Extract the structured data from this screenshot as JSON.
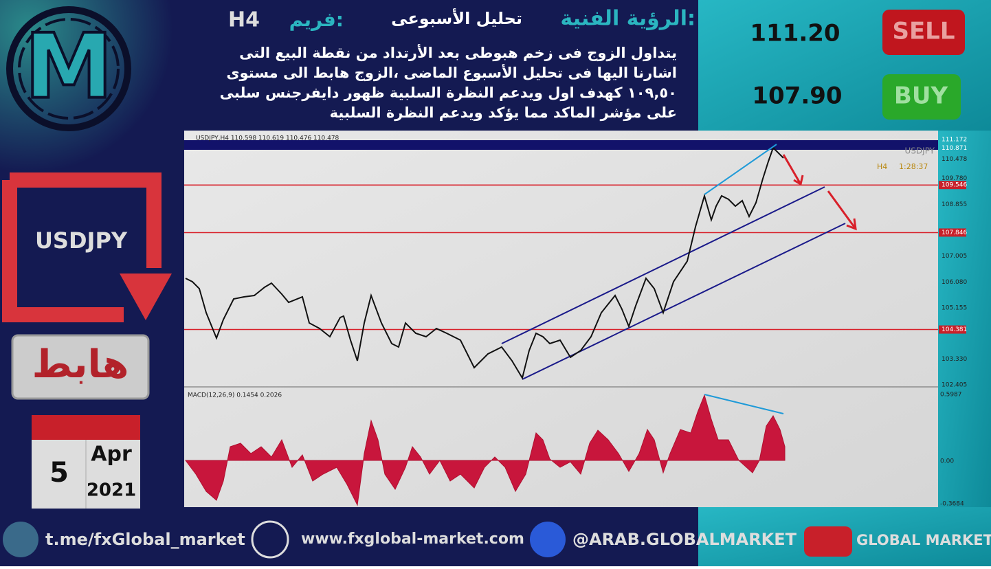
{
  "header": {
    "title_label": "الرؤية الفنية:",
    "analysis": "تحليل الأسبوعى",
    "frame_label": "فريم:",
    "frame": "H4"
  },
  "description": [
    "يتداول الزوج فى زخم هبوطى بعد الأرتداد من نقطة البيع التى",
    "اشارنا اليها فى تحليل الأسبوع الماضى ،الزوج هابط الى مستوى",
    "١٠٩,٥٠ كهدف اول ويدعم النظرة السلبية ظهور دايفرجنس سلبى",
    "على مؤشر الماكد مما يؤكد ويدعم النظرة السلبية"
  ],
  "signals": {
    "sell": {
      "label": "SELL",
      "price": "111.20"
    },
    "buy": {
      "label": "BUY",
      "price": "107.90"
    }
  },
  "pair": "USDJPY",
  "direction": "هابط",
  "date": {
    "day": "5",
    "month": "Apr",
    "year": "2021"
  },
  "chart": {
    "header": "USDJPY,H4  110.598 110.619 110.476 110.478",
    "symbol": "USDJPY",
    "timeframe": "H4",
    "timer": "1:28:37",
    "price_labels": [
      "111.172",
      "110.871",
      "110.478",
      "109.780",
      "109.546",
      "108.855",
      "107.846",
      "107.005",
      "106.080",
      "105.155",
      "104.381",
      "103.330",
      "102.405"
    ],
    "macd_header": "MACD(12,26,9) 0.1454 0.2026",
    "macd_labels": [
      "0.5987",
      "0.00",
      "-0.3684"
    ]
  },
  "footer": {
    "telegram": "t.me/fxGlobal_market",
    "website": "www.fxglobal-market.com",
    "facebook": "@ARAB.GLOBALMARKET",
    "youtube": "GLOBAL MARKET"
  }
}
